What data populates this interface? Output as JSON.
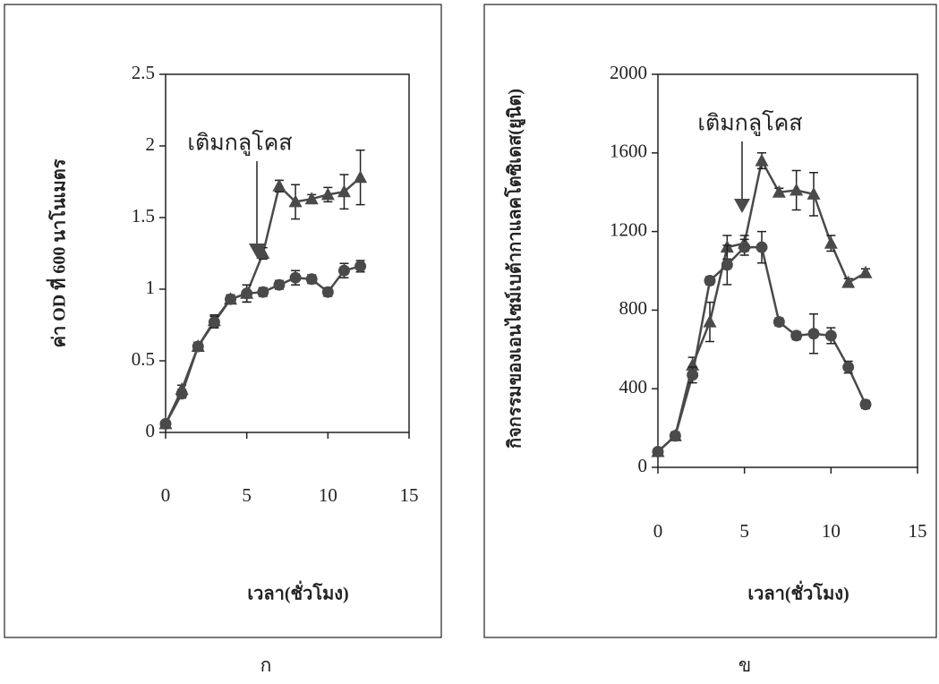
{
  "chart_data": [
    {
      "type": "line",
      "panel_label": "ก",
      "x_label": "เวลา(ชั่วโมง)",
      "y_label": "ค่า OD ที่ 600 นาโนเมตร",
      "annotation": "เติมกลูโคส",
      "xlim": [
        0,
        15
      ],
      "xticks": [
        0,
        5,
        10,
        15
      ],
      "ylim": [
        0,
        2.5
      ],
      "yticks": [
        0,
        0.5,
        1,
        1.5,
        2,
        2.5
      ],
      "x": [
        0,
        1,
        2,
        3,
        4,
        5,
        6,
        7,
        8,
        9,
        10,
        11,
        12
      ],
      "series": [
        {
          "marker": "triangle",
          "color": "#4a4a4a",
          "values": [
            0.06,
            0.3,
            0.6,
            0.78,
            0.93,
            0.97,
            1.25,
            1.72,
            1.61,
            1.63,
            1.66,
            1.68,
            1.78
          ],
          "errors": [
            0.02,
            0.03,
            0.03,
            0.04,
            0.03,
            0.06,
            0.04,
            0.04,
            0.12,
            0.03,
            0.05,
            0.12,
            0.19
          ]
        },
        {
          "marker": "circle",
          "color": "#4a4a4a",
          "values": [
            0.06,
            0.27,
            0.6,
            0.77,
            0.93,
            0.97,
            0.98,
            1.03,
            1.08,
            1.07,
            0.98,
            1.13,
            1.16
          ],
          "errors": [
            0.02,
            0.03,
            0.03,
            0.04,
            0.03,
            0.06,
            0.03,
            0.03,
            0.05,
            0.03,
            0.03,
            0.05,
            0.04
          ]
        }
      ]
    },
    {
      "type": "line",
      "panel_label": "ข",
      "x_label": "เวลา(ชั่วโมง)",
      "y_label": "กิจกรรมของเอนไซม์เบต้ากาแลคโตซิเดส(ยูนิต)",
      "annotation": "เติมกลูโคส",
      "xlim": [
        0,
        15
      ],
      "xticks": [
        0,
        5,
        10,
        15
      ],
      "ylim": [
        0,
        2000
      ],
      "yticks": [
        0,
        400,
        800,
        1200,
        1600,
        2000
      ],
      "x": [
        0,
        1,
        2,
        3,
        4,
        5,
        6,
        7,
        8,
        9,
        10,
        11,
        12
      ],
      "series": [
        {
          "marker": "triangle",
          "color": "#4a4a4a",
          "values": [
            80,
            160,
            520,
            740,
            1120,
            1140,
            1560,
            1400,
            1410,
            1390,
            1140,
            940,
            990
          ],
          "errors": [
            15,
            20,
            40,
            100,
            60,
            40,
            40,
            20,
            100,
            110,
            40,
            20,
            20
          ]
        },
        {
          "marker": "circle",
          "color": "#4a4a4a",
          "values": [
            80,
            160,
            470,
            950,
            1030,
            1120,
            1120,
            740,
            670,
            680,
            670,
            510,
            320
          ],
          "errors": [
            15,
            20,
            40,
            20,
            100,
            40,
            80,
            20,
            20,
            100,
            40,
            30,
            20
          ]
        }
      ]
    }
  ]
}
